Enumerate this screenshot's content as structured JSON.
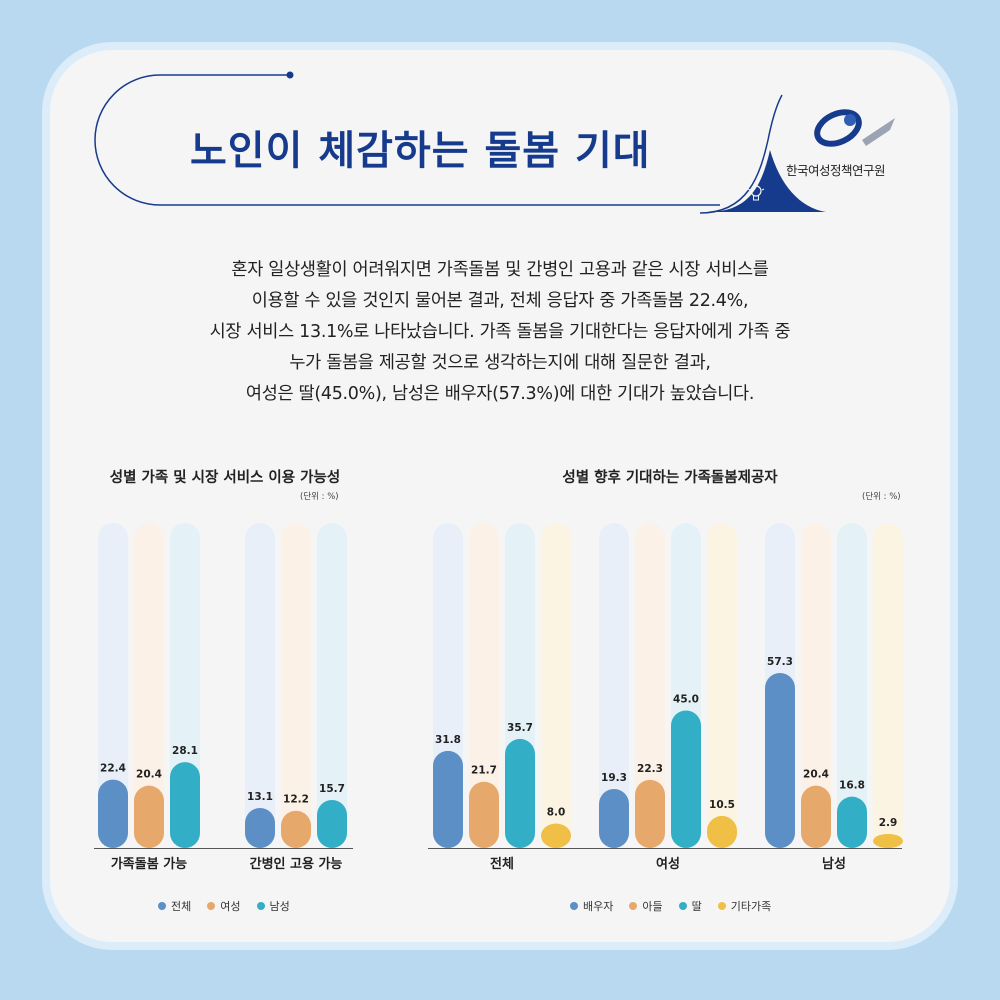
{
  "header": {
    "title": "노인이 체감하는 돌봄 기대",
    "org": "한국여성정책연구원"
  },
  "intro_lines": [
    "혼자 일상생활이 어려워지면 가족돌봄 및 간병인 고용과 같은 시장 서비스를",
    "이용할 수 있을 것인지 물어본 결과, 전체 응답자 중 가족돌봄 22.4%,",
    "시장 서비스 13.1%로 나타났습니다. 가족 돌봄을 기대한다는 응답자에게 가족 중",
    "누가 돌봄을 제공할 것으로 생각하는지에 대해 질문한 결과,",
    "여성은 딸(45.0%), 남성은 배우자(57.3%)에 대한 기대가 높았습니다."
  ],
  "chart_data": [
    {
      "type": "bar",
      "title": "성별 가족 및 시장 서비스 이용 가능성",
      "unit": "(단위 : %)",
      "categories": [
        "가족돌봄 가능",
        "간병인 고용 가능"
      ],
      "series": [
        {
          "name": "전체",
          "values": [
            22.4,
            13.1
          ],
          "color": "#5b8fc6"
        },
        {
          "name": "여성",
          "values": [
            20.4,
            12.2
          ],
          "color": "#e6a86b"
        },
        {
          "name": "남성",
          "values": [
            28.1,
            15.7
          ],
          "color": "#33aec7"
        }
      ],
      "ylim": [
        0,
        60
      ],
      "grid": false,
      "legend": "bottom"
    },
    {
      "type": "bar",
      "title": "성별 향후 기대하는 가족돌봄제공자",
      "unit": "(단위 : %)",
      "categories": [
        "전체",
        "여성",
        "남성"
      ],
      "series": [
        {
          "name": "배우자",
          "values": [
            31.8,
            19.3,
            57.3
          ],
          "color": "#5b8fc6"
        },
        {
          "name": "아들",
          "values": [
            21.7,
            22.3,
            20.4
          ],
          "color": "#e6a86b"
        },
        {
          "name": "딸",
          "values": [
            35.7,
            45.0,
            16.8
          ],
          "color": "#33aec7"
        },
        {
          "name": "기타가족",
          "values": [
            8.0,
            10.5,
            2.9
          ],
          "color": "#f0bf45"
        }
      ],
      "ylim": [
        0,
        60
      ],
      "grid": false,
      "legend": "bottom"
    }
  ],
  "colors": {
    "background": "#b9d9f0",
    "card": "#f5f5f6",
    "title": "#173b8c",
    "track": [
      "#e8eff8",
      "#fbf1e6",
      "#e4f2f7",
      "#fcf4e2"
    ]
  }
}
